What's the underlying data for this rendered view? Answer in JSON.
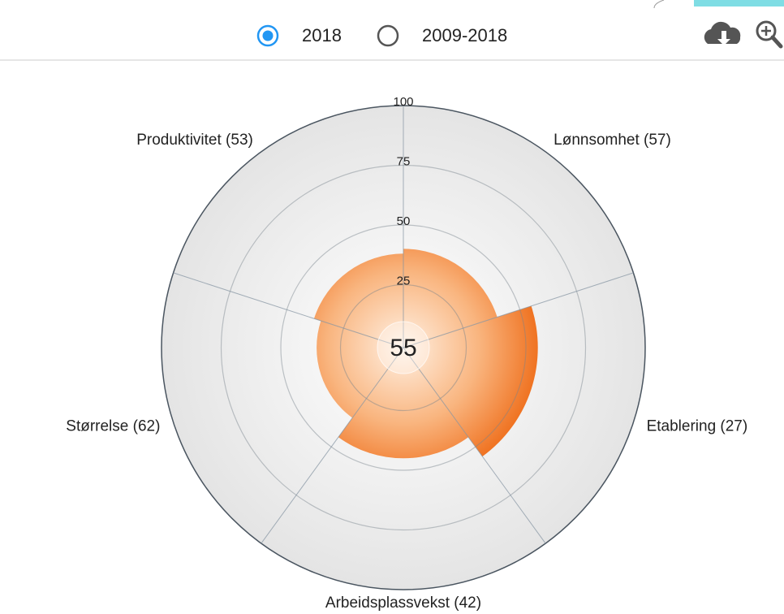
{
  "controls": {
    "options": [
      "2018",
      "2009-2018"
    ],
    "selected": 0
  },
  "chart_data": {
    "type": "polar",
    "center_value": 55,
    "categories": [
      "Lønnsomhet (57)",
      "Etablering (27)",
      "Arbeidsplassvekst (42)",
      "Størrelse (62)",
      "Produktivitet (53)"
    ],
    "values": [
      40,
      55,
      45,
      35,
      38
    ],
    "color": "#f07a2a",
    "ylim": [
      0,
      100
    ],
    "yticks": [
      25,
      50,
      75,
      100
    ],
    "grid": true
  }
}
